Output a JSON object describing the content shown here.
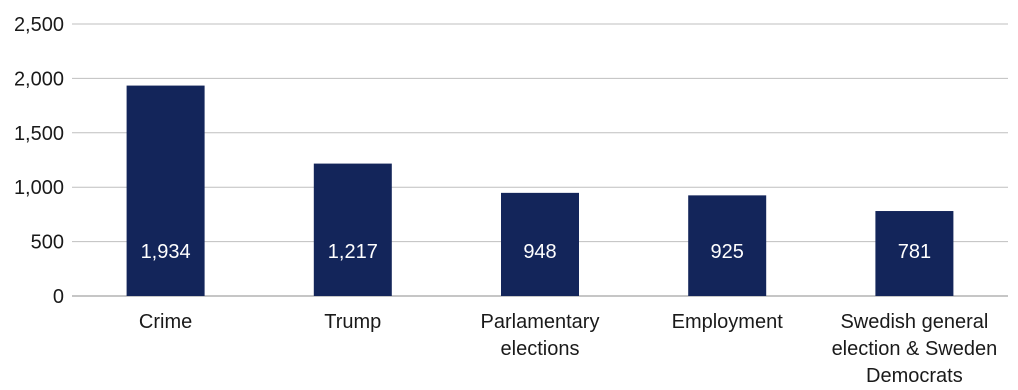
{
  "chart_data": {
    "type": "bar",
    "title": "",
    "xlabel": "",
    "ylabel": "",
    "ylim": [
      0,
      2500
    ],
    "yticks": [
      0,
      500,
      1000,
      1500,
      2000,
      2500
    ],
    "ytick_labels": [
      "0",
      "500",
      "1,000",
      "1,500",
      "2,000",
      "2,500"
    ],
    "grid": true,
    "legend": "none",
    "categories": [
      "Crime",
      "Trump",
      "Parlamentary elections",
      "Employment",
      "Swedish general election & Sweden Democrats"
    ],
    "category_lines": [
      [
        "Crime"
      ],
      [
        "Trump"
      ],
      [
        "Parlamentary",
        "elections"
      ],
      [
        "Employment"
      ],
      [
        "Swedish general",
        "election & Sweden",
        "Democrats"
      ]
    ],
    "values": [
      1934,
      1217,
      948,
      925,
      781
    ],
    "value_labels": [
      "1,934",
      "1,217",
      "948",
      "925",
      "781"
    ],
    "colors": {
      "bar": "#13255a",
      "grid": "#bfbfbf",
      "axis": "#8c8c8c",
      "label_on_bar": "#ffffff"
    }
  }
}
